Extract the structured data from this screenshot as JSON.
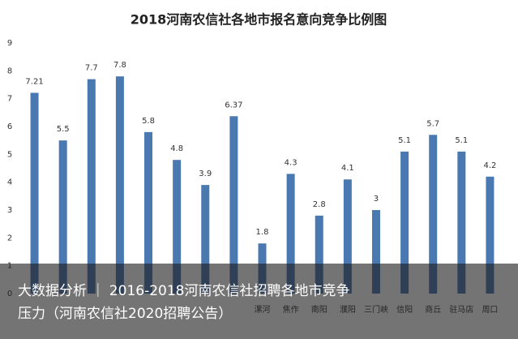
{
  "chart_data": {
    "type": "bar",
    "title": "2018河南农信社各地市报名意向竞争比例图",
    "categories": [
      null,
      null,
      null,
      null,
      null,
      null,
      null,
      null,
      "漯河",
      "焦作",
      "南阳",
      "濮阳",
      "三门峡",
      "信阳",
      "商丘",
      "驻马店",
      "周口"
    ],
    "values": [
      7.21,
      5.5,
      7.7,
      7.8,
      5.8,
      4.8,
      3.9,
      6.37,
      1.8,
      4.3,
      2.8,
      4.1,
      3,
      5.1,
      5.7,
      5.1,
      4.2
    ],
    "color": "#4a78b0",
    "ylim": [
      0,
      9
    ],
    "yticks": [
      0,
      1,
      2,
      3,
      4,
      5,
      6,
      7,
      8,
      9
    ]
  },
  "caption": [
    "大数据分析 ｜ 2016-2018河南农信社招聘各地市竞争",
    "压力（河南农信社2020招聘公告）"
  ]
}
